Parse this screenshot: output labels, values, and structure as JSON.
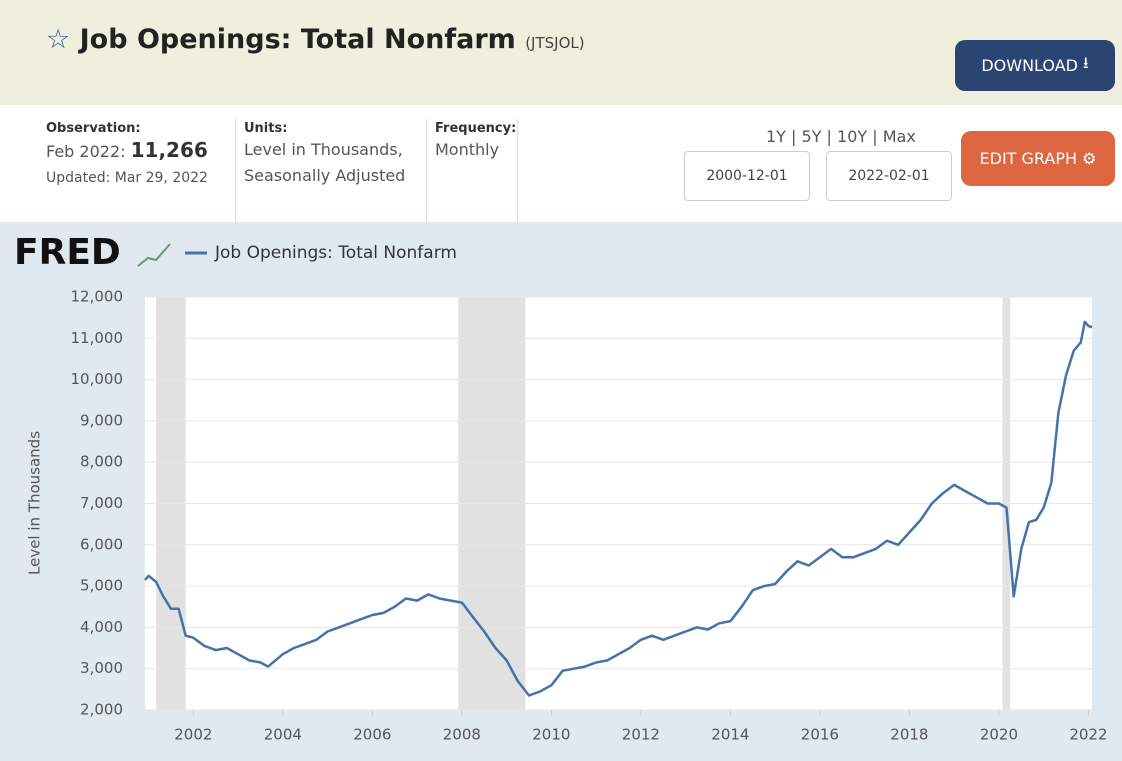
{
  "header": {
    "title": "Job Openings: Total Nonfarm",
    "ticker": "(JTSJOL)",
    "download": "DOWNLOAD"
  },
  "info": {
    "observation_label": "Observation:",
    "observation_date": "Feb 2022:",
    "observation_value": "11,266",
    "updated": "Updated: Mar 29, 2022",
    "units_label": "Units:",
    "units_line1": "Level in Thousands,",
    "units_line2": "Seasonally Adjusted",
    "frequency_label": "Frequency:",
    "frequency_value": "Monthly",
    "ranges": "1Y | 5Y | 10Y | Max",
    "start_date": "2000-12-01",
    "end_date": "2022-02-01",
    "edit_graph": "EDIT GRAPH"
  },
  "logo": "FRED",
  "chart_data": {
    "type": "line",
    "y_label": "Level in Thousands",
    "x": [
      2000.92,
      2001.0,
      2001.17,
      2001.33,
      2001.5,
      2001.67,
      2001.83,
      2002.0,
      2002.25,
      2002.5,
      2002.75,
      2003.0,
      2003.25,
      2003.5,
      2003.67,
      2004.0,
      2004.25,
      2004.5,
      2004.75,
      2005.0,
      2005.25,
      2005.5,
      2005.75,
      2006.0,
      2006.25,
      2006.5,
      2006.75,
      2007.0,
      2007.25,
      2007.5,
      2007.75,
      2008.0,
      2008.25,
      2008.5,
      2008.75,
      2009.0,
      2009.25,
      2009.5,
      2009.75,
      2010.0,
      2010.25,
      2010.5,
      2010.75,
      2011.0,
      2011.25,
      2011.5,
      2011.75,
      2012.0,
      2012.25,
      2012.5,
      2012.75,
      2013.0,
      2013.25,
      2013.5,
      2013.75,
      2014.0,
      2014.25,
      2014.5,
      2014.75,
      2015.0,
      2015.25,
      2015.5,
      2015.75,
      2016.0,
      2016.25,
      2016.5,
      2016.75,
      2017.0,
      2017.25,
      2017.5,
      2017.75,
      2018.0,
      2018.25,
      2018.5,
      2018.75,
      2019.0,
      2019.25,
      2019.5,
      2019.75,
      2020.0,
      2020.17,
      2020.33,
      2020.5,
      2020.67,
      2020.83,
      2021.0,
      2021.17,
      2021.33,
      2021.5,
      2021.67,
      2021.83,
      2021.92,
      2022.0,
      2022.08
    ],
    "series": [
      {
        "name": "Job Openings: Total Nonfarm",
        "color": "#4572a7",
        "values": [
          5150,
          5250,
          5100,
          4750,
          4450,
          4450,
          3800,
          3750,
          3550,
          3450,
          3500,
          3350,
          3200,
          3150,
          3050,
          3350,
          3500,
          3600,
          3700,
          3900,
          4000,
          4100,
          4200,
          4300,
          4350,
          4500,
          4700,
          4650,
          4800,
          4700,
          4650,
          4600,
          4250,
          3900,
          3500,
          3200,
          2700,
          2350,
          2450,
          2600,
          2950,
          3000,
          3050,
          3150,
          3200,
          3350,
          3500,
          3700,
          3800,
          3700,
          3800,
          3900,
          4000,
          3950,
          4100,
          4150,
          4500,
          4900,
          5000,
          5050,
          5350,
          5600,
          5500,
          5700,
          5900,
          5700,
          5700,
          5800,
          5900,
          6100,
          6000,
          6300,
          6600,
          7000,
          7250,
          7450,
          7300,
          7150,
          7000,
          7000,
          6900,
          4750,
          5900,
          6550,
          6600,
          6900,
          7500,
          9200,
          10100,
          10700,
          10900,
          11400,
          11300,
          11266
        ]
      }
    ],
    "recessions": [
      [
        2001.17,
        2001.83
      ],
      [
        2007.92,
        2009.42
      ],
      [
        2020.08,
        2020.25
      ]
    ],
    "xlim": [
      2000.92,
      2022.08
    ],
    "xticks": [
      2002,
      2004,
      2006,
      2008,
      2010,
      2012,
      2014,
      2016,
      2018,
      2020,
      2022
    ],
    "ylim": [
      2000,
      12000
    ],
    "yticks": [
      {
        "value": 2000,
        "label": "2,000"
      },
      {
        "value": 3000,
        "label": "3,000"
      },
      {
        "value": 4000,
        "label": "4,000"
      },
      {
        "value": 5000,
        "label": "5,000"
      },
      {
        "value": 6000,
        "label": "6,000"
      },
      {
        "value": 7000,
        "label": "7,000"
      },
      {
        "value": 8000,
        "label": "8,000"
      },
      {
        "value": 9000,
        "label": "9,000"
      },
      {
        "value": 10000,
        "label": "10,000"
      },
      {
        "value": 11000,
        "label": "11,000"
      },
      {
        "value": 12000,
        "label": "12,000"
      }
    ],
    "grid": true
  }
}
